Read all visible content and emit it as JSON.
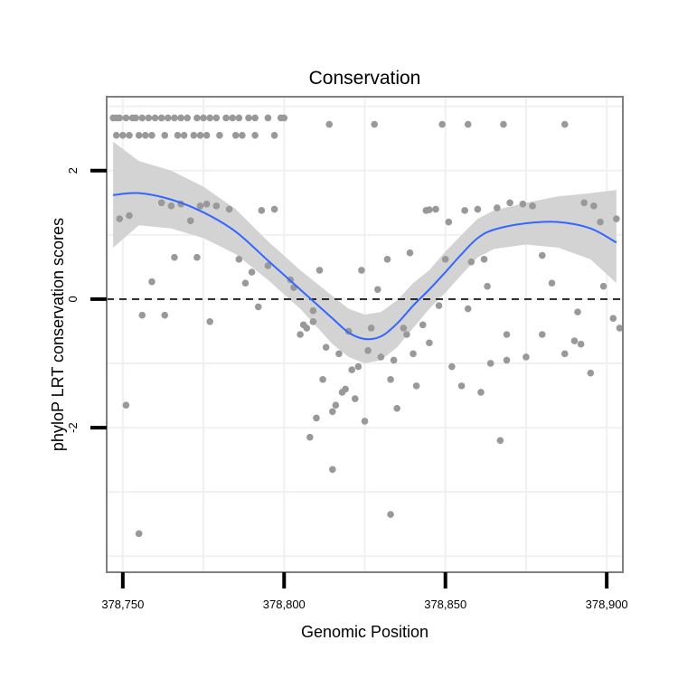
{
  "chart_data": {
    "type": "scatter",
    "title": "Conservation",
    "xlabel": "Genomic Position",
    "ylabel": "phyloP LRT conservation scores",
    "xlim": [
      378745,
      378905
    ],
    "ylim": [
      -4.25,
      3.15
    ],
    "xticks": [
      378750,
      378800,
      378850,
      378900
    ],
    "xtick_labels": [
      "378,750",
      "378,800",
      "378,850",
      "378,900"
    ],
    "yticks": [
      -2,
      0,
      2
    ],
    "ytick_labels": [
      "-2",
      "0",
      "2"
    ],
    "grid": true,
    "reference_line": {
      "y": 0,
      "style": "dashed"
    },
    "colors": {
      "points": "#999999",
      "smooth_line": "#3366ff",
      "confidence_band": "#d3d3d3",
      "grid": "#f0f0f0",
      "panel_border": "#7f7f7f"
    },
    "series": [
      {
        "name": "scores",
        "kind": "points",
        "x": [
          378747,
          378748,
          378749,
          378751,
          378753,
          378754,
          378756,
          378758,
          378760,
          378762,
          378764,
          378766,
          378768,
          378770,
          378773,
          378775,
          378777,
          378779,
          378782,
          378784,
          378786,
          378789,
          378791,
          378795,
          378799,
          378800,
          378748,
          378750,
          378752,
          378755,
          378757,
          378759,
          378763,
          378767,
          378769,
          378772,
          378774,
          378776,
          378780,
          378785,
          378787,
          378791,
          378797,
          378814,
          378849,
          378857,
          378868,
          378887,
          378828,
          378749,
          378752,
          378765,
          378762,
          378768,
          378771,
          378774,
          378776,
          378779,
          378783,
          378793,
          378797,
          378844,
          378845,
          378847,
          378851,
          378856,
          378860,
          378866,
          378870,
          378874,
          378877,
          378893,
          378896,
          378898,
          378903,
          378766,
          378773,
          378786,
          378790,
          378795,
          378802,
          378811,
          378824,
          378832,
          378839,
          378850,
          378858,
          378862,
          378880,
          378759,
          378756,
          378763,
          378777,
          378788,
          378792,
          378803,
          378806,
          378809,
          378820,
          378827,
          378829,
          378843,
          378848,
          378857,
          378863,
          378869,
          378883,
          378890,
          378899,
          378902,
          378904,
          378805,
          378813,
          378817,
          378821,
          378823,
          378826,
          378830,
          378834,
          378837,
          378840,
          378845,
          378852,
          378855,
          378810,
          378808,
          378812,
          378815,
          378816,
          378818,
          378822,
          378825,
          378833,
          378835,
          378841,
          378861,
          378864,
          378867,
          378875,
          378887,
          378892,
          378895,
          378751,
          378755,
          378807,
          378809,
          378815,
          378819,
          378833,
          378838,
          378869,
          378880,
          378891
        ],
        "y": [
          2.82,
          2.82,
          2.82,
          2.82,
          2.82,
          2.82,
          2.82,
          2.82,
          2.82,
          2.82,
          2.82,
          2.82,
          2.82,
          2.82,
          2.82,
          2.82,
          2.82,
          2.82,
          2.82,
          2.82,
          2.82,
          2.82,
          2.82,
          2.82,
          2.82,
          2.82,
          2.55,
          2.55,
          2.55,
          2.55,
          2.55,
          2.55,
          2.55,
          2.55,
          2.55,
          2.55,
          2.55,
          2.55,
          2.55,
          2.55,
          2.55,
          2.55,
          2.55,
          2.72,
          2.72,
          2.72,
          2.72,
          2.72,
          2.72,
          1.25,
          1.3,
          1.45,
          1.5,
          1.48,
          1.22,
          1.45,
          1.48,
          1.45,
          1.4,
          1.38,
          1.4,
          1.38,
          1.39,
          1.4,
          1.2,
          1.38,
          1.4,
          1.42,
          1.5,
          1.48,
          1.45,
          1.5,
          1.45,
          1.2,
          1.25,
          0.65,
          0.65,
          0.62,
          0.42,
          0.52,
          0.3,
          0.45,
          0.45,
          0.62,
          0.72,
          0.62,
          0.58,
          0.62,
          0.68,
          0.27,
          -0.25,
          -0.25,
          -0.35,
          0.25,
          -0.12,
          0.18,
          -0.4,
          -0.18,
          -0.5,
          -0.45,
          0.15,
          -0.4,
          -0.1,
          -0.15,
          0.2,
          -0.55,
          0.25,
          -0.65,
          0.2,
          -0.3,
          -0.45,
          -0.55,
          -0.75,
          -0.85,
          -1.1,
          -1.05,
          -0.8,
          -0.9,
          -0.95,
          -0.45,
          -0.85,
          -0.68,
          -1.05,
          -1.35,
          -1.85,
          -2.15,
          -1.25,
          -1.75,
          -1.65,
          -1.45,
          -1.55,
          -1.9,
          -1.25,
          -1.7,
          -1.35,
          -1.45,
          -1.0,
          -2.2,
          -0.9,
          -0.85,
          -0.7,
          -1.15,
          -1.65,
          -3.65,
          -0.45,
          -0.35,
          -2.65,
          -1.4,
          -3.35,
          -0.55,
          -0.95,
          -0.55,
          -0.2
        ]
      },
      {
        "name": "loess fit",
        "kind": "smooth",
        "x": [
          378747,
          378755,
          378765,
          378775,
          378785,
          378795,
          378805,
          378815,
          378820,
          378825,
          378830,
          378835,
          378840,
          378845,
          378850,
          378855,
          378860,
          378865,
          378875,
          378885,
          378895,
          378903
        ],
        "y": [
          1.62,
          1.65,
          1.55,
          1.35,
          1.05,
          0.6,
          0.15,
          -0.3,
          -0.52,
          -0.62,
          -0.58,
          -0.38,
          -0.1,
          0.15,
          0.42,
          0.7,
          0.95,
          1.08,
          1.18,
          1.2,
          1.1,
          0.88
        ],
        "lower": [
          0.8,
          1.15,
          1.1,
          0.95,
          0.7,
          0.3,
          -0.15,
          -0.7,
          -0.9,
          -1.0,
          -0.95,
          -0.75,
          -0.45,
          -0.15,
          0.1,
          0.38,
          0.65,
          0.78,
          0.85,
          0.8,
          0.62,
          0.25
        ],
        "upper": [
          2.45,
          2.15,
          2.0,
          1.75,
          1.4,
          0.9,
          0.45,
          0.05,
          -0.15,
          -0.24,
          -0.2,
          -0.02,
          0.25,
          0.45,
          0.74,
          1.0,
          1.25,
          1.38,
          1.5,
          1.6,
          1.65,
          1.7
        ]
      }
    ]
  }
}
